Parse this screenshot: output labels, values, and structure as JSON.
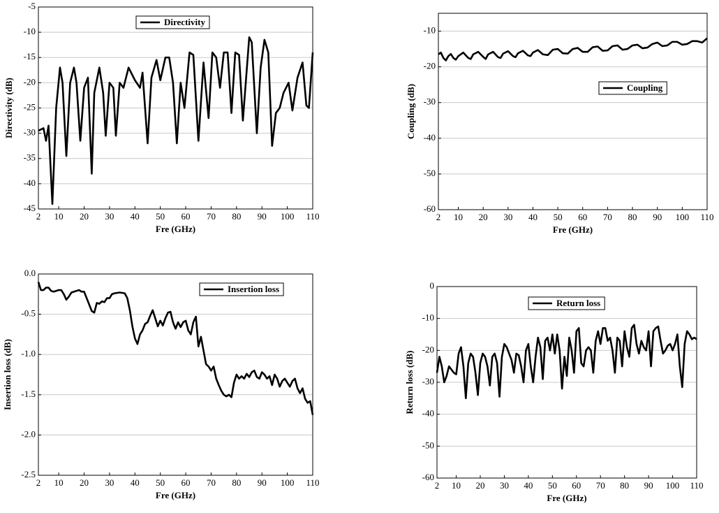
{
  "chart_data": [
    {
      "type": "line",
      "xlabel": "Fre (GHz)",
      "ylabel": "Directivity (dB)",
      "xlim": [
        2,
        110
      ],
      "xticks": [
        2,
        10,
        20,
        30,
        40,
        50,
        60,
        70,
        80,
        90,
        100,
        110
      ],
      "ylim": [
        -45,
        -5
      ],
      "yticks": [
        -45,
        -40,
        -35,
        -30,
        -25,
        -20,
        -15,
        -10,
        -5
      ],
      "grid": true,
      "x": [
        2,
        4,
        5,
        6,
        7.5,
        9,
        10.5,
        11.5,
        13,
        14.5,
        16,
        17,
        18.5,
        20,
        21.5,
        23,
        24,
        26,
        27.5,
        28.5,
        30,
        31.5,
        32.5,
        34,
        35.5,
        37.5,
        40,
        42,
        43,
        45,
        46.5,
        48.5,
        50,
        52,
        53.5,
        55,
        56.5,
        58,
        59.5,
        61.5,
        63,
        65,
        67,
        69,
        70.5,
        72,
        73.5,
        75,
        76.5,
        78,
        79.5,
        81,
        82.5,
        85,
        86,
        88,
        89.5,
        91,
        92.5,
        94,
        95.5,
        97,
        98.5,
        100.5,
        102,
        104,
        106,
        107.5,
        108.5,
        110
      ],
      "series": [
        {
          "name": "Directivity",
          "color": "#000000",
          "values": [
            -29.5,
            -29,
            -31.5,
            -28.5,
            -44,
            -25,
            -17,
            -20,
            -34.5,
            -20,
            -17,
            -20,
            -31.5,
            -21,
            -19,
            -38,
            -22,
            -17,
            -22,
            -30.5,
            -20,
            -21,
            -30.5,
            -20,
            -21,
            -17,
            -19.5,
            -21,
            -18,
            -32,
            -19,
            -15.5,
            -19.5,
            -15,
            -15,
            -20,
            -32,
            -20,
            -25,
            -14,
            -14.5,
            -31.5,
            -16,
            -27,
            -14,
            -15,
            -21,
            -14,
            -14,
            -26,
            -14,
            -14.5,
            -27.5,
            -11,
            -12,
            -30,
            -17,
            -11.5,
            -14,
            -32.5,
            -26,
            -25,
            -22,
            -20,
            -25.5,
            -19,
            -16,
            -24.5,
            -25,
            -14
          ]
        }
      ]
    },
    {
      "type": "line",
      "xlabel": "Fre (GHz)",
      "ylabel": "Coupling (dB)",
      "xlim": [
        2,
        110
      ],
      "xticks": [
        2,
        10,
        20,
        30,
        40,
        50,
        60,
        70,
        80,
        90,
        100,
        110
      ],
      "ylim": [
        -60,
        -5
      ],
      "yticks": [
        -60,
        -50,
        -40,
        -30,
        -20,
        -10
      ],
      "grid": true,
      "x": [
        2,
        3,
        4,
        5,
        6,
        7,
        8,
        9,
        10,
        12,
        14,
        15,
        16,
        18,
        20,
        21,
        22,
        24,
        26,
        27,
        28,
        30,
        32,
        33,
        34,
        36,
        38,
        39,
        40,
        42,
        44,
        46,
        48,
        50,
        52,
        54,
        56,
        58,
        60,
        62,
        64,
        66,
        68,
        70,
        72,
        74,
        76,
        78,
        80,
        82,
        84,
        86,
        88,
        90,
        92,
        94,
        96,
        98,
        100,
        102,
        104,
        106,
        108,
        110
      ],
      "series": [
        {
          "name": "Coupling",
          "color": "#000000",
          "values": [
            -16.5,
            -16,
            -17.5,
            -18.2,
            -17,
            -16.4,
            -17.5,
            -18,
            -17,
            -16,
            -17.5,
            -17.8,
            -16.5,
            -15.8,
            -17.2,
            -17.8,
            -16.5,
            -15.8,
            -17.3,
            -17.5,
            -16.3,
            -15.6,
            -17,
            -17.3,
            -16.2,
            -15.5,
            -16.8,
            -17,
            -16,
            -15.3,
            -16.5,
            -16.7,
            -15.2,
            -15,
            -16.2,
            -16.3,
            -15,
            -14.7,
            -15.8,
            -15.8,
            -14.5,
            -14.3,
            -15.5,
            -15.4,
            -14.2,
            -14,
            -15.2,
            -15,
            -14,
            -13.8,
            -14.8,
            -14.6,
            -13.6,
            -13.2,
            -14.2,
            -14,
            -13,
            -13,
            -13.8,
            -13.6,
            -12.8,
            -12.8,
            -13.2,
            -12
          ]
        }
      ]
    },
    {
      "type": "line",
      "xlabel": "Fre (GHz)",
      "ylabel": "Insertion loss (dB)",
      "xlim": [
        2,
        110
      ],
      "xticks": [
        2,
        10,
        20,
        30,
        40,
        50,
        60,
        70,
        80,
        90,
        100,
        110
      ],
      "ylim": [
        -2.5,
        0
      ],
      "yticks": [
        {
          "value": -2.5,
          "label": "-2.5"
        },
        {
          "value": -2,
          "label": "-2.0"
        },
        {
          "value": -1.5,
          "label": "-1.5"
        },
        {
          "value": -1,
          "label": "-1.0"
        },
        {
          "value": -0.5,
          "label": "-0.5"
        },
        {
          "value": 0,
          "label": "0.0"
        }
      ],
      "grid": true,
      "x": [
        2,
        3,
        4,
        5,
        6,
        7,
        8,
        10,
        11,
        12,
        13,
        14,
        15,
        16,
        17,
        18,
        19,
        20,
        21,
        22,
        23,
        24,
        25,
        26,
        27,
        28,
        29,
        30,
        31,
        32,
        34,
        36,
        37,
        38,
        39,
        40,
        41,
        42,
        43,
        44,
        45,
        46,
        47,
        48,
        49,
        50,
        51,
        52,
        53,
        54,
        55,
        56,
        57,
        58,
        59,
        60,
        61,
        62,
        63,
        64,
        65,
        66,
        67,
        68,
        69,
        70,
        71,
        72,
        73,
        74,
        75,
        76,
        77,
        78,
        79,
        80,
        81,
        82,
        83,
        84,
        85,
        86,
        87,
        88,
        89,
        90,
        91,
        92,
        93,
        94,
        95,
        96,
        97,
        98,
        99,
        100,
        101,
        102,
        103,
        104,
        105,
        106,
        107,
        108,
        109,
        110
      ],
      "series": [
        {
          "name": "Insertion loss",
          "color": "#000000",
          "values": [
            -0.1,
            -0.2,
            -0.2,
            -0.17,
            -0.17,
            -0.21,
            -0.22,
            -0.2,
            -0.2,
            -0.25,
            -0.32,
            -0.28,
            -0.23,
            -0.22,
            -0.21,
            -0.2,
            -0.22,
            -0.22,
            -0.3,
            -0.38,
            -0.46,
            -0.48,
            -0.36,
            -0.37,
            -0.34,
            -0.35,
            -0.3,
            -0.3,
            -0.25,
            -0.24,
            -0.23,
            -0.24,
            -0.3,
            -0.45,
            -0.65,
            -0.8,
            -0.87,
            -0.75,
            -0.7,
            -0.62,
            -0.6,
            -0.52,
            -0.45,
            -0.55,
            -0.65,
            -0.58,
            -0.64,
            -0.55,
            -0.48,
            -0.47,
            -0.6,
            -0.68,
            -0.6,
            -0.66,
            -0.6,
            -0.58,
            -0.7,
            -0.75,
            -0.6,
            -0.53,
            -0.9,
            -0.78,
            -0.95,
            -1.12,
            -1.15,
            -1.2,
            -1.15,
            -1.3,
            -1.38,
            -1.45,
            -1.5,
            -1.52,
            -1.5,
            -1.53,
            -1.35,
            -1.25,
            -1.3,
            -1.27,
            -1.3,
            -1.24,
            -1.28,
            -1.22,
            -1.2,
            -1.28,
            -1.3,
            -1.22,
            -1.25,
            -1.3,
            -1.27,
            -1.38,
            -1.25,
            -1.3,
            -1.4,
            -1.33,
            -1.3,
            -1.35,
            -1.4,
            -1.33,
            -1.3,
            -1.42,
            -1.48,
            -1.42,
            -1.55,
            -1.6,
            -1.58,
            -1.75
          ]
        }
      ]
    },
    {
      "type": "line",
      "xlabel": "Fre (GHz)",
      "ylabel": "Return loss (dB)",
      "xlim": [
        2,
        110
      ],
      "xticks": [
        2,
        10,
        20,
        30,
        40,
        50,
        60,
        70,
        80,
        90,
        100,
        110
      ],
      "ylim": [
        -60,
        0
      ],
      "yticks": [
        -60,
        -50,
        -40,
        -30,
        -20,
        -10,
        0
      ],
      "grid": true,
      "x": [
        2,
        3,
        4,
        5,
        6,
        7,
        8,
        9,
        10,
        11,
        12,
        13,
        14,
        15,
        16,
        17,
        18,
        19,
        20,
        21,
        22,
        23,
        24,
        25,
        26,
        27,
        28,
        29,
        30,
        31,
        32,
        33,
        34,
        35,
        36,
        37,
        38,
        39,
        40,
        41,
        42,
        43,
        44,
        45,
        46,
        47,
        48,
        49,
        50,
        51,
        52,
        53,
        54,
        55,
        56,
        57,
        58,
        59,
        60,
        61,
        62,
        63,
        64,
        65,
        66,
        67,
        68,
        69,
        70,
        71,
        72,
        73,
        74,
        75,
        76,
        77,
        78,
        79,
        80,
        81,
        82,
        83,
        84,
        85,
        86,
        87,
        88,
        89,
        90,
        91,
        92,
        93,
        94,
        95,
        96,
        97,
        98,
        99,
        100,
        101,
        102,
        103,
        104,
        105,
        106,
        107,
        108,
        109,
        110
      ],
      "series": [
        {
          "name": "Return loss",
          "color": "#000000",
          "values": [
            -27,
            -22,
            -25,
            -30,
            -28,
            -25,
            -26,
            -27,
            -27.5,
            -21,
            -19,
            -25,
            -35,
            -24,
            -21,
            -22,
            -27,
            -34,
            -24,
            -21,
            -22,
            -25,
            -31,
            -22,
            -21,
            -24,
            -34.5,
            -22,
            -18,
            -19,
            -21,
            -23,
            -27,
            -21,
            -21.5,
            -25,
            -30,
            -20,
            -18,
            -25,
            -30,
            -22,
            -16,
            -19,
            -29,
            -17,
            -16,
            -20,
            -15,
            -21,
            -15,
            -20,
            -32,
            -22,
            -28,
            -16,
            -20,
            -27,
            -14,
            -13,
            -24,
            -25,
            -20,
            -19,
            -20,
            -27,
            -17,
            -14,
            -18,
            -13,
            -13,
            -17,
            -16,
            -20,
            -27,
            -16,
            -17,
            -25,
            -14,
            -19,
            -22,
            -13,
            -12,
            -18,
            -21,
            -17,
            -19,
            -20,
            -14,
            -25,
            -14,
            -13,
            -12.5,
            -17,
            -21,
            -20,
            -18.5,
            -18,
            -20,
            -18,
            -15,
            -25,
            -31.5,
            -18,
            -14,
            -15,
            -16.5,
            -16,
            -16.5
          ]
        }
      ]
    }
  ]
}
